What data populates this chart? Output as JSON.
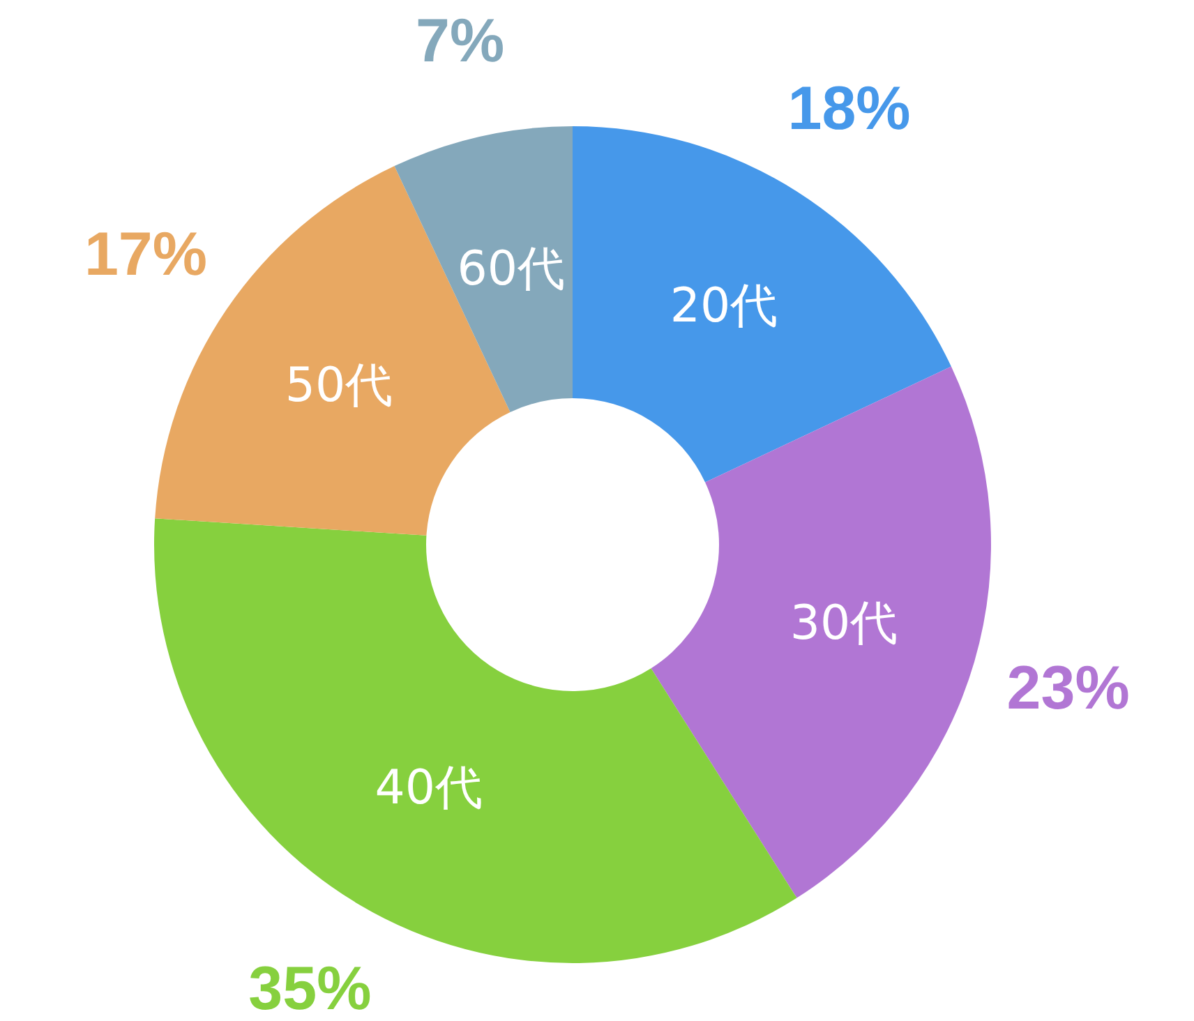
{
  "chart_data": {
    "type": "donut",
    "categories": [
      "20代",
      "30代",
      "40代",
      "50代",
      "60代"
    ],
    "values": [
      18,
      23,
      35,
      17,
      7
    ],
    "colors": [
      "#4698ea",
      "#b176d4",
      "#86d03e",
      "#e8a862",
      "#84a8bb"
    ],
    "value_labels": [
      "18%",
      "23%",
      "35%",
      "17%",
      "7%"
    ]
  }
}
